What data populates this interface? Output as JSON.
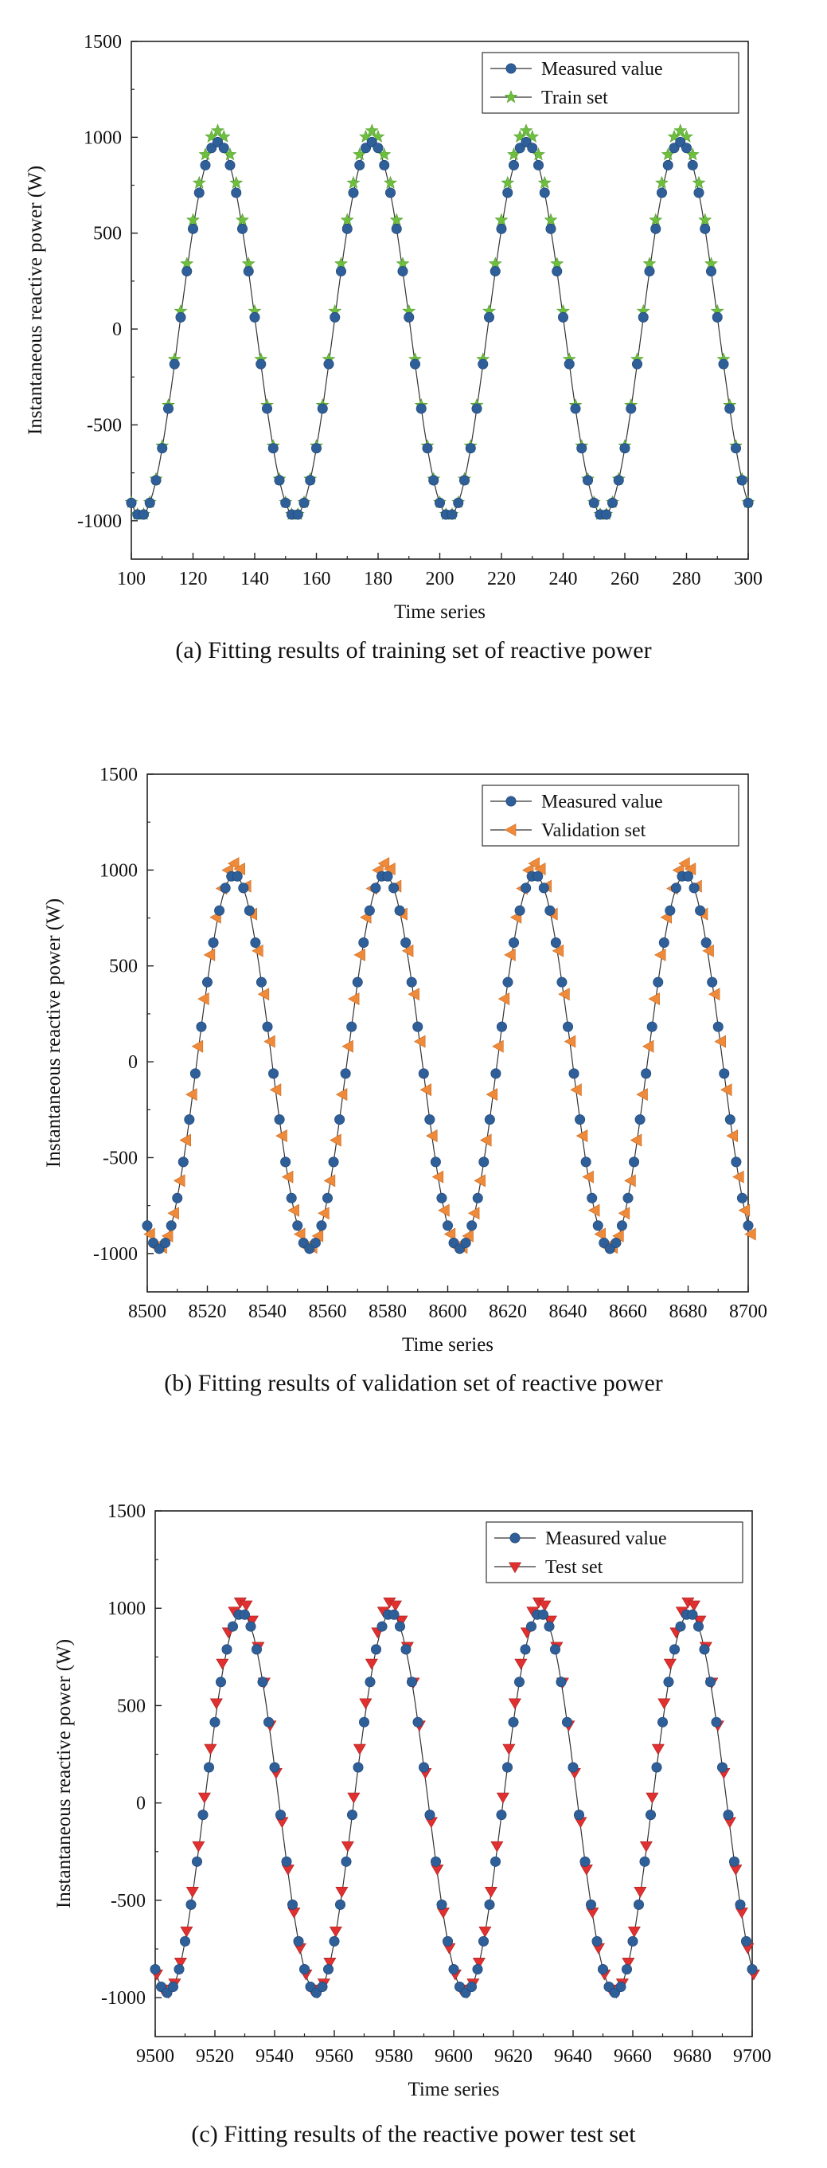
{
  "chart_data": [
    {
      "type": "line",
      "panel": "a",
      "ylabel": "Instantaneous reactive power   (W)",
      "xlabel": "Time series",
      "caption": "(a) Fitting results of training set of reactive power",
      "xlim": [
        100,
        300
      ],
      "ylim": [
        -1200,
        1500
      ],
      "xticks": [
        "100",
        "120",
        "140",
        "160",
        "180",
        "200",
        "220",
        "240",
        "260",
        "280",
        "300"
      ],
      "yticks": [
        "-1000",
        "-500",
        "0",
        "500",
        "1000",
        "1500"
      ],
      "legend_position": "top-right",
      "period": 50,
      "amplitude": 975,
      "peak_x": 128,
      "series": [
        {
          "name": "Measured value",
          "color": "#2f5f99",
          "marker": "circle"
        },
        {
          "name": "Train set",
          "color": "#6fbf3f",
          "marker": "star"
        }
      ]
    },
    {
      "type": "line",
      "panel": "b",
      "ylabel": "Instantaneous reactive power      (W)",
      "xlabel": "Time series",
      "caption": "(b) Fitting results of validation set of reactive power",
      "xlim": [
        8500,
        8700
      ],
      "ylim": [
        -1200,
        1500
      ],
      "xticks": [
        "8500",
        "8520",
        "8540",
        "8560",
        "8580",
        "8600",
        "8620",
        "8640",
        "8660",
        "8680",
        "8700"
      ],
      "yticks": [
        "-1000",
        "-500",
        "0",
        "500",
        "1000",
        "1500"
      ],
      "legend_position": "top-right",
      "period": 50,
      "amplitude": 975,
      "peak_x": 8529,
      "series": [
        {
          "name": "Measured value",
          "color": "#2f5f99",
          "marker": "circle"
        },
        {
          "name": "Validation set",
          "color": "#ef8a3a",
          "marker": "triangle-left"
        }
      ]
    },
    {
      "type": "line",
      "panel": "c",
      "ylabel": "Instantaneous reactive power      (W)",
      "xlabel": "Time series",
      "caption": "(c) Fitting results of the reactive power test set",
      "xlim": [
        9500,
        9700
      ],
      "ylim": [
        -1200,
        1500
      ],
      "xticks": [
        "9500",
        "9520",
        "9540",
        "9560",
        "9580",
        "9600",
        "9620",
        "9640",
        "9660",
        "9680",
        "9700"
      ],
      "yticks": [
        "-1000",
        "-500",
        "0",
        "500",
        "1000",
        "1500"
      ],
      "legend_position": "top-right",
      "period": 50,
      "amplitude": 975,
      "peak_x": 9529,
      "series": [
        {
          "name": "Measured value",
          "color": "#2f5f99",
          "marker": "circle"
        },
        {
          "name": "Test set",
          "color": "#e03030",
          "marker": "triangle-down"
        }
      ]
    }
  ]
}
